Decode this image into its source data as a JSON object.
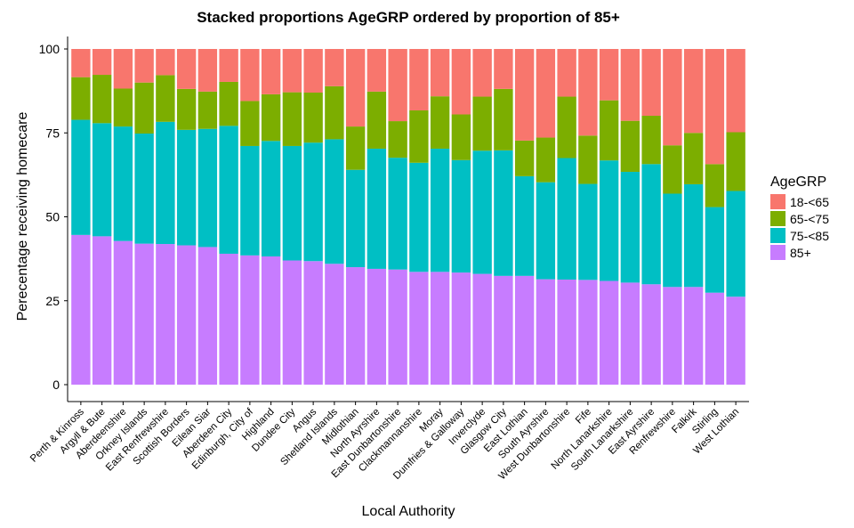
{
  "chart_data": {
    "type": "bar",
    "stacked": true,
    "title": "Stacked proportions AgeGRP ordered by proportion of 85+",
    "xlabel": "Local Authority",
    "ylabel": "Perecentage receiving homecare",
    "ylim": [
      0,
      100
    ],
    "yticks": [
      "0",
      "25",
      "50",
      "75",
      "100"
    ],
    "grid": false,
    "legend": {
      "title": "AgeGRP",
      "position": "right",
      "entries": [
        "18-<65",
        "65-<75",
        "75-<85",
        "85+"
      ]
    },
    "categories": [
      "Perth & Kinross",
      "Argyll & Bute",
      "Aberdeenshire",
      "Orkney Islands",
      "East Renfrewshire",
      "Scottish Borders",
      "Eilean Siar",
      "Aberdeen City",
      "Edinburgh, City of",
      "Highland",
      "Dundee City",
      "Angus",
      "Shetland Islands",
      "Midlothian",
      "North Ayrshire",
      "East Dunbartonshire",
      "Clackmannanshire",
      "Moray",
      "Dumfries & Galloway",
      "Inverclyde",
      "Glasgow City",
      "East Lothian",
      "South Ayrshire",
      "West Dunbartonshire",
      "Fife",
      "North Lanarkshire",
      "South Lanarkshire",
      "East Ayrshire",
      "Renfrewshire",
      "Falkirk",
      "Stirling",
      "West Lothian"
    ],
    "series": [
      {
        "name": "85+",
        "color": "#C77CFF",
        "values": [
          44.6,
          44.2,
          42.8,
          42.0,
          41.9,
          41.5,
          41.0,
          39.0,
          38.5,
          38.2,
          37.0,
          36.8,
          36.0,
          35.0,
          34.5,
          34.3,
          33.6,
          33.6,
          33.4,
          33.0,
          32.4,
          32.4,
          31.4,
          31.3,
          31.2,
          30.9,
          30.4,
          29.9,
          29.1,
          29.1,
          27.4,
          26.2
        ]
      },
      {
        "name": "75-<85",
        "color": "#00BFC4",
        "values": [
          34.3,
          33.7,
          34.1,
          32.8,
          36.4,
          34.4,
          35.2,
          38.1,
          32.6,
          34.4,
          34.1,
          35.3,
          37.1,
          29.0,
          35.8,
          33.3,
          32.5,
          36.7,
          33.5,
          36.7,
          37.4,
          29.7,
          28.9,
          36.2,
          28.6,
          35.9,
          33.0,
          35.8,
          27.8,
          30.6,
          25.5,
          31.5
        ]
      },
      {
        "name": "65-<75",
        "color": "#7CAE00",
        "values": [
          12.7,
          14.4,
          11.3,
          15.2,
          13.9,
          12.2,
          11.1,
          13.1,
          13.4,
          13.9,
          16.0,
          14.9,
          15.8,
          12.9,
          17.0,
          10.9,
          15.6,
          15.6,
          13.6,
          16.1,
          18.3,
          10.6,
          13.3,
          18.3,
          14.4,
          17.9,
          15.2,
          14.4,
          14.4,
          15.3,
          12.8,
          17.5
        ]
      },
      {
        "name": "18-<65",
        "color": "#F8766D",
        "values": [
          8.4,
          7.7,
          11.8,
          10.0,
          7.8,
          11.9,
          12.7,
          9.8,
          15.5,
          13.5,
          12.9,
          13.0,
          11.1,
          23.1,
          12.7,
          21.5,
          18.3,
          14.1,
          19.5,
          14.2,
          11.9,
          27.3,
          26.4,
          14.2,
          25.8,
          15.3,
          21.4,
          19.9,
          28.7,
          25.0,
          34.3,
          24.8
        ]
      }
    ]
  }
}
